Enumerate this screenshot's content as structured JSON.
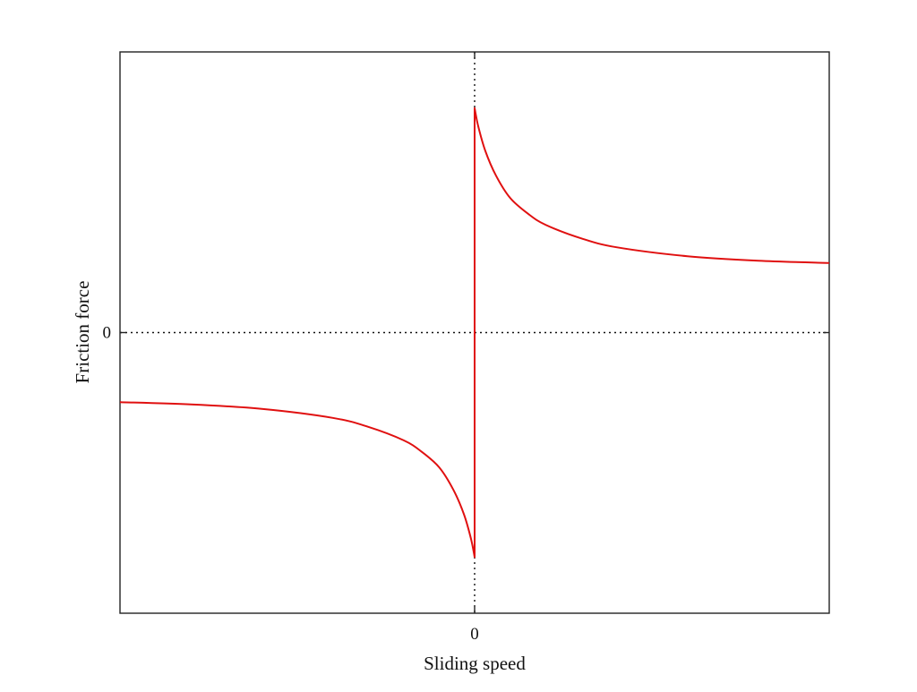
{
  "colors": {
    "curve": "#e01010",
    "frame": "#222222",
    "zero_line": "#111111",
    "background": "#ffffff"
  },
  "chart_data": {
    "type": "line",
    "title": "",
    "xlabel": "Sliding speed",
    "ylabel": "Friction force",
    "xlim": [
      -1,
      1
    ],
    "ylim": [
      -1.25,
      1.25
    ],
    "x_ticks": [
      {
        "value": 0,
        "label": "0"
      }
    ],
    "y_ticks": [
      {
        "value": 0,
        "label": "0"
      }
    ],
    "zero_lines": {
      "style": "dotted",
      "x": 0,
      "y": 0
    },
    "grid": false,
    "legend": "none",
    "series": [
      {
        "color": "#e01010",
        "x": [
          -1.0,
          -0.8,
          -0.6,
          -0.4,
          -0.3,
          -0.2,
          -0.15,
          -0.1,
          -0.06,
          -0.03,
          -0.01,
          0.0,
          0.0,
          0.0,
          0.01,
          0.03,
          0.06,
          0.1,
          0.15,
          0.2,
          0.3,
          0.4,
          0.6,
          0.8,
          1.0
        ],
        "y": [
          -0.31,
          -0.32,
          -0.34,
          -0.38,
          -0.42,
          -0.48,
          -0.53,
          -0.6,
          -0.7,
          -0.81,
          -0.92,
          -1.0,
          0.0,
          1.0,
          0.92,
          0.81,
          0.7,
          0.6,
          0.53,
          0.48,
          0.42,
          0.38,
          0.34,
          0.32,
          0.31
        ]
      }
    ]
  }
}
